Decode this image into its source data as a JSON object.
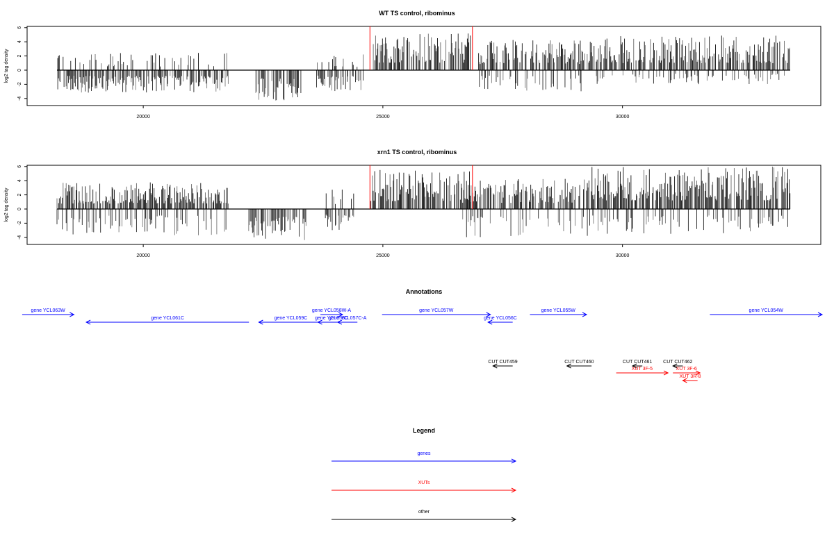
{
  "chart_data": [
    {
      "type": "bar",
      "title": "WT TS control, ribominus",
      "ylabel": "log2 tag density",
      "xlabel": "",
      "ylim": [
        -5,
        6.5
      ],
      "xlim": [
        17600,
        33700
      ],
      "yticks": [
        -4,
        -2,
        0,
        2,
        4,
        6
      ],
      "xticks": [
        20000,
        25000,
        30000
      ],
      "grid": false,
      "segments": [
        {
          "name": "seg_a",
          "x_range": [
            18200,
            21800
          ],
          "pos_max": 2.5,
          "neg_max": 3.2
        },
        {
          "name": "seg_b",
          "x_range": [
            22300,
            23300
          ],
          "pos_max": 0.5,
          "neg_max": 4.5
        },
        {
          "name": "seg_c",
          "x_range": [
            23600,
            24600
          ],
          "pos_max": 2.3,
          "neg_max": 3.0
        },
        {
          "name": "seg_d",
          "x_range": [
            24800,
            26850
          ],
          "pos_max": 5.2,
          "neg_max": 0.5
        },
        {
          "name": "seg_e",
          "x_range": [
            26950,
            29500
          ],
          "pos_max": 4.3,
          "neg_max": 3.0
        },
        {
          "name": "seg_f",
          "x_range": [
            29500,
            33500
          ],
          "pos_max": 4.9,
          "neg_max": 2.0
        }
      ],
      "markers": [
        {
          "x": 24730,
          "from": 0,
          "to": 6
        },
        {
          "x": 26870,
          "from": 0,
          "to": 6
        }
      ]
    },
    {
      "type": "bar",
      "title": "xrn1 TS control, ribominus",
      "ylabel": "log2 tag density",
      "xlabel": "",
      "ylim": [
        -5,
        6.5
      ],
      "xlim": [
        17600,
        33700
      ],
      "yticks": [
        -4,
        -2,
        0,
        2,
        4,
        6
      ],
      "xticks": [
        20000,
        25000,
        30000
      ],
      "grid": false,
      "segments": [
        {
          "name": "seg_a",
          "x_range": [
            18200,
            21800
          ],
          "pos_max": 3.8,
          "neg_max": 3.7
        },
        {
          "name": "seg_b",
          "x_range": [
            22200,
            23400
          ],
          "pos_max": 0.5,
          "neg_max": 4.4
        },
        {
          "name": "seg_c",
          "x_range": [
            23800,
            24400
          ],
          "pos_max": 2.8,
          "neg_max": 3.2
        },
        {
          "name": "seg_d",
          "x_range": [
            24750,
            26850
          ],
          "pos_max": 5.6,
          "neg_max": 0.3
        },
        {
          "name": "seg_e",
          "x_range": [
            26650,
            29300
          ],
          "pos_max": 4.3,
          "neg_max": 4.0
        },
        {
          "name": "seg_f",
          "x_range": [
            29300,
            33500
          ],
          "pos_max": 6.0,
          "neg_max": 3.5
        }
      ],
      "markers": [
        {
          "x": 24730,
          "from": 0,
          "to": 6
        },
        {
          "x": 26870,
          "from": 0,
          "to": 6
        }
      ]
    }
  ],
  "annotations": {
    "title": "Annotations",
    "features": [
      {
        "label": "gene YCL063W",
        "color": "#0000ff",
        "start": 17500,
        "end": 18550,
        "dir": "right",
        "row": 0
      },
      {
        "label": "gene YCL061C",
        "color": "#0000ff",
        "start": 18800,
        "end": 22100,
        "dir": "left",
        "row": 1
      },
      {
        "label": "gene YCL059C",
        "color": "#0000ff",
        "start": 22300,
        "end": 23600,
        "dir": "left",
        "row": 1
      },
      {
        "label": "gene YCL058W-A",
        "color": "#0000ff",
        "start": 23550,
        "end": 24000,
        "dir": "right",
        "row": 0
      },
      {
        "label": "gene YCL058C",
        "color": "#0000ff",
        "start": 23500,
        "end": 24050,
        "dir": "left",
        "row": 1
      },
      {
        "label": "gene YCL057C-A",
        "color": "#0000ff",
        "start": 23900,
        "end": 24300,
        "dir": "left",
        "row": 1
      },
      {
        "label": "gene YCL057W",
        "color": "#0000ff",
        "start": 24800,
        "end": 27000,
        "dir": "right",
        "row": 0
      },
      {
        "label": "gene YCL056C",
        "color": "#0000ff",
        "start": 26950,
        "end": 27450,
        "dir": "left",
        "row": 1
      },
      {
        "label": "gene YCL055W",
        "color": "#0000ff",
        "start": 27800,
        "end": 28950,
        "dir": "right",
        "row": 0
      },
      {
        "label": "gene YCL054W",
        "color": "#0000ff",
        "start": 31450,
        "end": 34000,
        "dir": "right",
        "row": 0
      },
      {
        "label": "CUT CUT459",
        "color": "#000000",
        "start": 27050,
        "end": 27450,
        "dir": "left",
        "row": 2
      },
      {
        "label": "CUT CUT460",
        "color": "#000000",
        "start": 28550,
        "end": 29050,
        "dir": "left",
        "row": 2
      },
      {
        "label": "CUT CUT461",
        "color": "#000000",
        "start": 29880,
        "end": 30080,
        "dir": "left",
        "row": 2
      },
      {
        "label": "CUT CUT462",
        "color": "#000000",
        "start": 30700,
        "end": 30900,
        "dir": "left",
        "row": 2
      },
      {
        "label": "XUT 3F-5",
        "color": "#ff0000",
        "start": 29550,
        "end": 30600,
        "dir": "right",
        "row": 3
      },
      {
        "label": "XUT 3F-6",
        "color": "#ff0000",
        "start": 30700,
        "end": 31250,
        "dir": "right",
        "row": 3
      },
      {
        "label": "XUT 3R-8",
        "color": "#ff0000",
        "start": 30900,
        "end": 31200,
        "dir": "left",
        "row": 4
      }
    ]
  },
  "legend": {
    "title": "Legend",
    "items": [
      {
        "label": "genes",
        "color": "#0000ff"
      },
      {
        "label": "XUTs",
        "color": "#ff0000"
      },
      {
        "label": "other",
        "color": "#000000"
      }
    ]
  }
}
